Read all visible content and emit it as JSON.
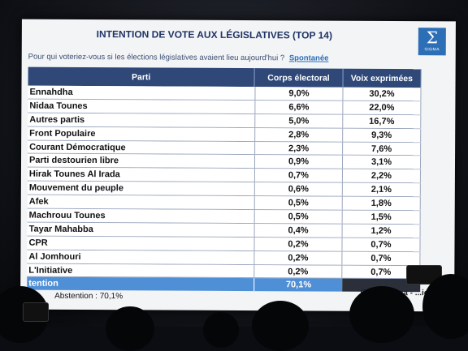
{
  "slide": {
    "title": "INTENTION DE VOTE AUX LÉGISLATIVES (TOP 14)",
    "logo": "SIGMA",
    "question": "Pour qui voteriez-vous si les élections législatives avaient lieu aujourd'hui ?",
    "question_tag": "Spontanée"
  },
  "table": {
    "headers": [
      "Parti",
      "Corps électoral",
      "Voix exprimées"
    ],
    "rows": [
      {
        "party": "Ennahdha",
        "corps": "9,0%",
        "voix": "30,2%"
      },
      {
        "party": "Nidaa Tounes",
        "corps": "6,6%",
        "voix": "22,0%"
      },
      {
        "party": "Autres partis",
        "corps": "5,0%",
        "voix": "16,7%"
      },
      {
        "party": "Front Populaire",
        "corps": "2,8%",
        "voix": "9,3%"
      },
      {
        "party": "Courant Démocratique",
        "corps": "2,3%",
        "voix": "7,6%"
      },
      {
        "party": "Parti destourien libre",
        "corps": "0,9%",
        "voix": "3,1%"
      },
      {
        "party": "Hirak Tounes Al Irada",
        "corps": "0,7%",
        "voix": "2,2%"
      },
      {
        "party": "Mouvement du peuple",
        "corps": "0,6%",
        "voix": "2,1%"
      },
      {
        "party": "Afek",
        "corps": "0,5%",
        "voix": "1,8%"
      },
      {
        "party": "Machrouu Tounes",
        "corps": "0,5%",
        "voix": "1,5%"
      },
      {
        "party": "Tayar Mahabba",
        "corps": "0,4%",
        "voix": "1,2%"
      },
      {
        "party": "CPR",
        "corps": "0,2%",
        "voix": "0,7%"
      },
      {
        "party": "Al Jomhouri",
        "corps": "0,2%",
        "voix": "0,7%"
      },
      {
        "party": "L'Initiative",
        "corps": "0,2%",
        "voix": "0,7%"
      }
    ],
    "abstention_label": "tention",
    "abstention_value": "70,1%"
  },
  "footnote": "Abstention : 70,1%",
  "source": "Open Sigma - ...ier 20"
}
